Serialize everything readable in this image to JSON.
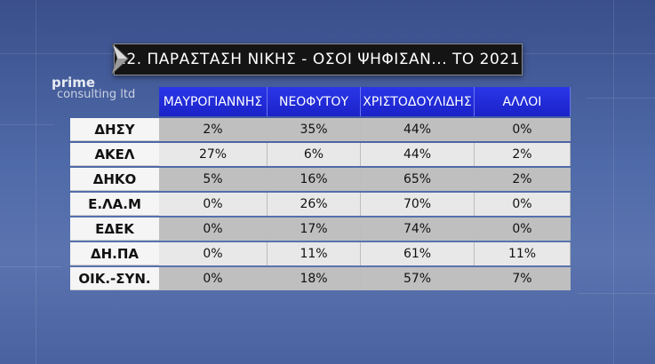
{
  "title": "12. ΠΑΡΑΣΤΑΣΗ ΝΙΚΗΣ - ΟΣΟΙ ΨΗΦΙΣΑΝ... ΤΟ 2021",
  "logo": {
    "line1": "prime",
    "line2": "consulting ltd"
  },
  "colors": {
    "header_blue": "#2a36e8",
    "title_bg": "#141414",
    "row_dark": "#bfbfbf",
    "row_light": "#e8e8e8"
  },
  "chart_data": {
    "type": "table",
    "title": "12. ΠΑΡΑΣΤΑΣΗ ΝΙΚΗΣ - ΟΣΟΙ ΨΗΦΙΣΑΝ... ΤΟ 2021",
    "columns": [
      "ΜΑΥΡΟΓΙΑΝΝΗΣ",
      "ΝΕΟΦΥΤΟΥ",
      "ΧΡΙΣΤΟΔΟΥΛΙΔΗΣ",
      "ΑΛΛΟΙ"
    ],
    "rows": [
      {
        "label": "ΔΗΣΥ",
        "values": [
          "2%",
          "35%",
          "44%",
          "0%"
        ]
      },
      {
        "label": "ΑΚΕΛ",
        "values": [
          "27%",
          "6%",
          "44%",
          "2%"
        ]
      },
      {
        "label": "ΔΗΚΟ",
        "values": [
          "5%",
          "16%",
          "65%",
          "2%"
        ]
      },
      {
        "label": "Ε.ΛΑ.Μ",
        "values": [
          "0%",
          "26%",
          "70%",
          "0%"
        ]
      },
      {
        "label": "ΕΔΕΚ",
        "values": [
          "0%",
          "17%",
          "74%",
          "0%"
        ]
      },
      {
        "label": "ΔΗ.ΠΑ",
        "values": [
          "0%",
          "11%",
          "61%",
          "11%"
        ]
      },
      {
        "label": "ΟΙΚ.-ΣΥΝ.",
        "values": [
          "0%",
          "18%",
          "57%",
          "7%"
        ]
      }
    ]
  }
}
